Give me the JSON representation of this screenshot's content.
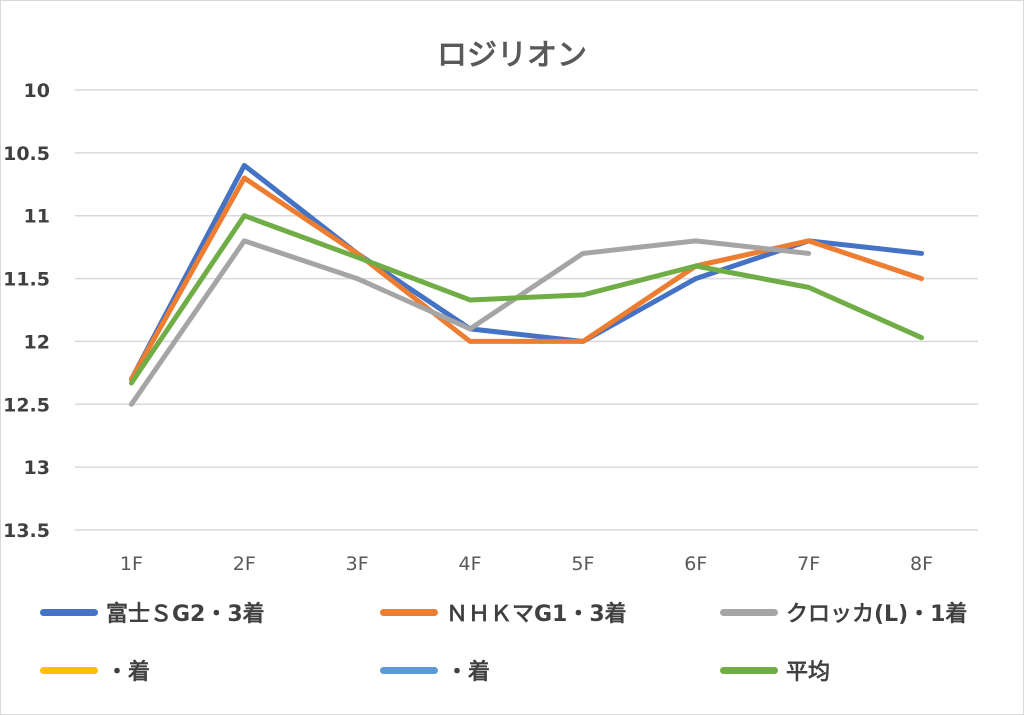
{
  "chart_data": {
    "type": "line",
    "title": "ロジリオン",
    "categories": [
      "1F",
      "2F",
      "3F",
      "4F",
      "5F",
      "6F",
      "7F",
      "8F"
    ],
    "y_axis": {
      "reversed": true,
      "ylim": [
        10,
        13.5
      ],
      "ticks": [
        "10",
        "10.5",
        "11",
        "11.5",
        "12",
        "12.5",
        "13",
        "13.5"
      ]
    },
    "grid": true,
    "legend_position": "bottom",
    "series": [
      {
        "name": "富士ＳG2・3着",
        "color": "#4472c4",
        "values": [
          12.3,
          10.6,
          11.3,
          11.9,
          12.0,
          11.5,
          11.2,
          11.3
        ]
      },
      {
        "name": "ＮＨＫマG1・3着",
        "color": "#ed7d31",
        "values": [
          12.3,
          10.7,
          11.3,
          12.0,
          12.0,
          11.4,
          11.2,
          11.5
        ]
      },
      {
        "name": "クロッカ(L)・1着",
        "color": "#a5a5a5",
        "values": [
          12.5,
          11.2,
          11.5,
          11.9,
          11.3,
          11.2,
          11.3,
          null
        ]
      },
      {
        "name": "・着",
        "color": "#ffc000",
        "values": [
          null,
          null,
          null,
          null,
          null,
          null,
          null,
          null
        ]
      },
      {
        "name": "・着",
        "color": "#5b9bd5",
        "values": [
          null,
          null,
          null,
          null,
          null,
          null,
          null,
          null
        ]
      },
      {
        "name": "平均",
        "color": "#70ad47",
        "values": [
          12.33,
          11.0,
          11.33,
          11.67,
          11.63,
          11.4,
          11.57,
          11.97
        ]
      }
    ]
  }
}
